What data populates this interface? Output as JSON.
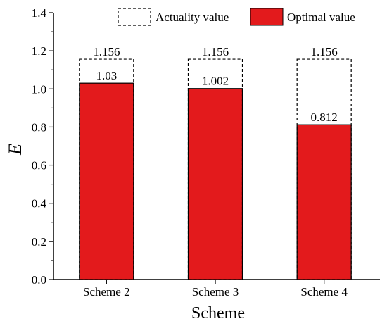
{
  "chart_data": {
    "type": "bar",
    "categories": [
      "Scheme 2",
      "Scheme 3",
      "Scheme 4"
    ],
    "series": [
      {
        "name": "Actuality value",
        "values": [
          1.156,
          1.156,
          1.156
        ],
        "style": "dashed-outline"
      },
      {
        "name": "Optimal value",
        "values": [
          1.03,
          1.002,
          0.812
        ],
        "style": "filled"
      }
    ],
    "data_labels": {
      "actuality": [
        "1.156",
        "1.156",
        "1.156"
      ],
      "optimal": [
        "1.03",
        "1.002",
        "0.812"
      ]
    },
    "xlabel": "Scheme",
    "ylabel": "E",
    "ylim": [
      0,
      1.4
    ],
    "yticks": [
      "0.0",
      "0.2",
      "0.4",
      "0.6",
      "0.8",
      "1.0",
      "1.2",
      "1.4"
    ],
    "legend_position": "top-right",
    "grid": false
  },
  "colors": {
    "optimal_fill": "#e31a1c",
    "outline": "#000000"
  }
}
